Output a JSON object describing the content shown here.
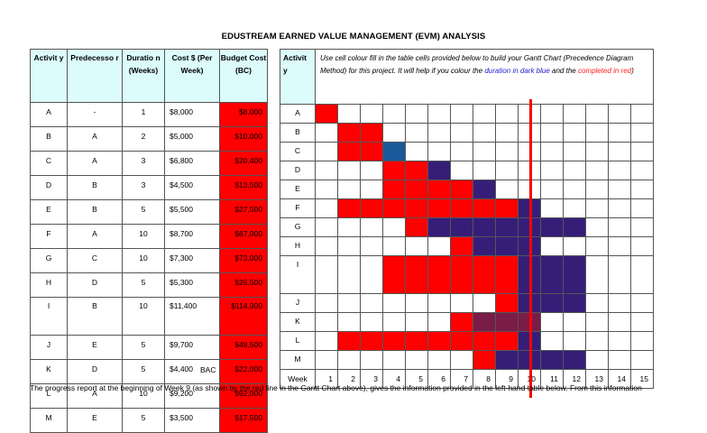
{
  "title": "EDUSTREAM EARNED VALUE MANAGEMENT (EVM) ANALYSIS",
  "left_table": {
    "headers": [
      "Activit y",
      "Predecesso r",
      "Duratio n (Weeks)",
      "Cost $ (Per Week)",
      "Budget Cost (BC)"
    ],
    "rows": [
      {
        "activity": "A",
        "pred": "-",
        "duration": "1",
        "cost": "$8,000",
        "bc": "$8,000"
      },
      {
        "activity": "B",
        "pred": "A",
        "duration": "2",
        "cost": "$5,000",
        "bc": "$10,000"
      },
      {
        "activity": "C",
        "pred": "A",
        "duration": "3",
        "cost": "$6,800",
        "bc": "$20,400"
      },
      {
        "activity": "D",
        "pred": "B",
        "duration": "3",
        "cost": "$4,500",
        "bc": "$13,500"
      },
      {
        "activity": "E",
        "pred": "B",
        "duration": "5",
        "cost": "$5,500",
        "bc": "$27,500"
      },
      {
        "activity": "F",
        "pred": "A",
        "duration": "10",
        "cost": "$8,700",
        "bc": "$87,000"
      },
      {
        "activity": "G",
        "pred": "C",
        "duration": "10",
        "cost": "$7,300",
        "bc": "$73,000"
      },
      {
        "activity": "H",
        "pred": "D",
        "duration": "5",
        "cost": "$5,300",
        "bc": "$26,500"
      },
      {
        "activity": "I",
        "pred": "B",
        "duration": "10",
        "cost": "$11,400",
        "bc": "$114,000"
      },
      {
        "activity": "J",
        "pred": "E",
        "duration": "5",
        "cost": "$9,700",
        "bc": "$48,500"
      },
      {
        "activity": "K",
        "pred": "D",
        "duration": "5",
        "cost": "$4,400",
        "bc": "$22,000"
      },
      {
        "activity": "L",
        "pred": "A",
        "duration": "10",
        "cost": "$9,200",
        "bc": "$92,000"
      },
      {
        "activity": "M",
        "pred": "E",
        "duration": "5",
        "cost": "$3,500",
        "bc": "$17,500"
      }
    ],
    "footer": "BAC"
  },
  "gantt": {
    "header_label": "Activit y",
    "instructions_pre": "Use cell colour fill in the table cells provided below to build your Gantt Chart (Precedence Diagram Method) for this project.  It will help if you colour the ",
    "instructions_blue": "duration in dark blue",
    "instructions_mid": " and the ",
    "instructions_red": "completed in red",
    "instructions_post": ")",
    "week_label": "Week",
    "weeks": [
      "1",
      "2",
      "3",
      "4",
      "5",
      "6",
      "7",
      "8",
      "9",
      "10",
      "11",
      "12",
      "13",
      "14",
      "15"
    ],
    "status_line_after_week": 9,
    "colors": {
      "completed": "#ff0000",
      "duration": "#361e78",
      "duration_alt": "#1a5a9a",
      "overlap": "#7a1c48",
      "status_line": "#ff0000"
    },
    "rows": [
      {
        "activity": "A",
        "cells": "r.............."
      },
      {
        "activity": "B",
        "cells": ".rr............"
      },
      {
        "activity": "C",
        "cells": ".rrb..........."
      },
      {
        "activity": "D",
        "cells": "...rrp........."
      },
      {
        "activity": "E",
        "cells": "...rrrrp......."
      },
      {
        "activity": "F",
        "cells": ".rrrrrrrrp....."
      },
      {
        "activity": "G",
        "cells": "....rppppppp..."
      },
      {
        "activity": "H",
        "cells": "......rppp....."
      },
      {
        "activity": "I",
        "cells": "...rrrrrrppp..."
      },
      {
        "activity": "J",
        "cells": "........rppp..."
      },
      {
        "activity": "K",
        "cells": "......rmmm....."
      },
      {
        "activity": "L",
        "cells": ".rrrrrrrrp....."
      },
      {
        "activity": "M",
        "cells": ".......rpppp..."
      }
    ]
  },
  "paragraph": "The progress report at the beginning of Week 9 (as shown by the red line in the Gantt Chart above), gives the information provided in the left-hand table below.  From this information"
}
